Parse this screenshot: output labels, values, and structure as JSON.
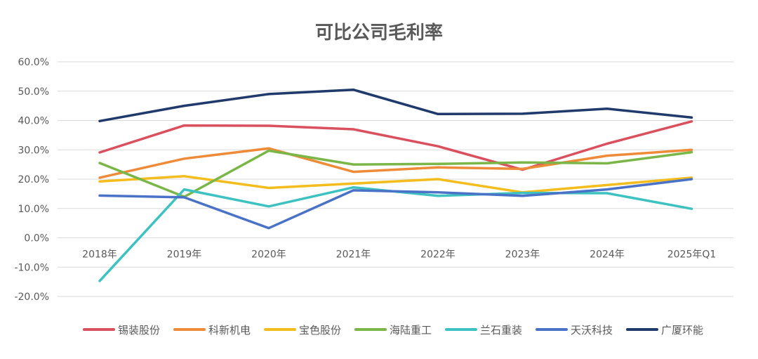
{
  "chart_data": {
    "type": "line",
    "title": "可比公司毛利率",
    "xlabel": "",
    "ylabel": "",
    "categories": [
      "2018年",
      "2019年",
      "2020年",
      "2021年",
      "2022年",
      "2023年",
      "2024年",
      "2025年Q1"
    ],
    "ylim": [
      -0.2,
      0.6
    ],
    "ytick_labels": [
      "60.0%",
      "50.0%",
      "40.0%",
      "30.0%",
      "20.0%",
      "10.0%",
      "0.0%",
      "-10.0%",
      "-20.0%"
    ],
    "yticks": [
      0.6,
      0.5,
      0.4,
      0.3,
      0.2,
      0.1,
      0.0,
      -0.1,
      -0.2
    ],
    "grid": true,
    "legend_position": "bottom",
    "series": [
      {
        "name": "锡装股份",
        "color": "#D9505E",
        "values": [
          0.291,
          0.383,
          0.382,
          0.37,
          0.312,
          0.232,
          0.321,
          0.397
        ]
      },
      {
        "name": "科新机电",
        "color": "#ED8B39",
        "values": [
          0.205,
          0.27,
          0.305,
          0.225,
          0.24,
          0.235,
          0.28,
          0.3
        ]
      },
      {
        "name": "宝色股份",
        "color": "#F2BD1D",
        "values": [
          0.192,
          0.21,
          0.17,
          0.185,
          0.2,
          0.155,
          0.18,
          0.205
        ]
      },
      {
        "name": "海陆重工",
        "color": "#7AB648",
        "values": [
          0.255,
          0.14,
          0.297,
          0.25,
          0.252,
          0.257,
          0.254,
          0.292
        ]
      },
      {
        "name": "兰石重装",
        "color": "#3EC1C1",
        "values": [
          -0.147,
          0.165,
          0.107,
          0.172,
          0.143,
          0.153,
          0.152,
          0.099
        ]
      },
      {
        "name": "天沃科技",
        "color": "#4A72C6",
        "values": [
          0.144,
          0.138,
          0.033,
          0.162,
          0.155,
          0.143,
          0.165,
          0.2
        ]
      },
      {
        "name": "广厦环能",
        "color": "#1F3A6B",
        "values": [
          0.398,
          0.45,
          0.49,
          0.505,
          0.422,
          0.423,
          0.44,
          0.41
        ]
      }
    ]
  }
}
